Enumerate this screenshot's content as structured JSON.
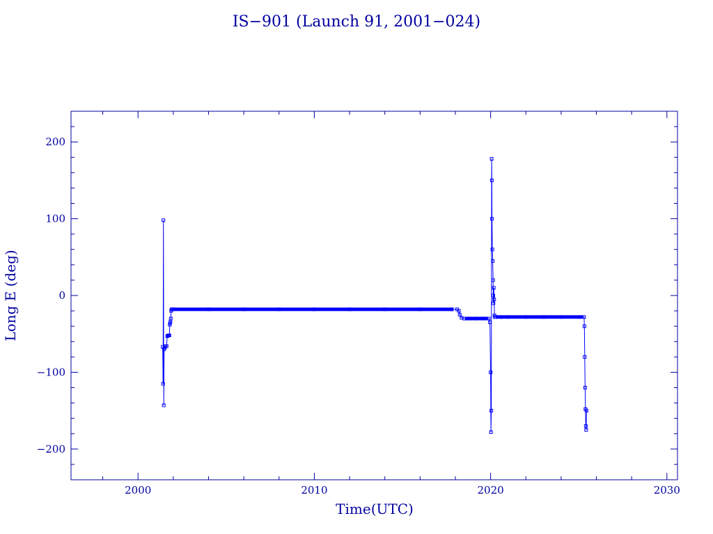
{
  "chart_data": {
    "type": "line",
    "title": "IS−901 (Launch 91, 2001−024)",
    "xlabel": "Time(UTC)",
    "ylabel": "Long E (deg)",
    "xlim": [
      1996.2,
      2030.6
    ],
    "ylim": [
      -240,
      240
    ],
    "x_ticks": [
      2000,
      2010,
      2020,
      2030
    ],
    "x_tick_labels": [
      "2000",
      "2010",
      "2020",
      "2030"
    ],
    "y_ticks": [
      -200,
      -100,
      0,
      100,
      200
    ],
    "y_tick_labels": [
      "−200",
      "−100",
      "0",
      "100",
      "200"
    ],
    "grid": false,
    "legend": "none",
    "color": "#0000ff",
    "axis_color": "#0000a0",
    "series": [
      {
        "marker": "open-square",
        "x": [
          2001.4,
          2001.42,
          2001.44,
          2001.46,
          2001.48,
          2001.52,
          2001.56,
          2001.62,
          2001.66,
          2001.7,
          2001.74,
          2001.78,
          2001.8,
          2001.82,
          2001.84,
          2001.86,
          2001.88,
          2001.9,
          2001.94,
          2002.0,
          2004.0,
          2006.0,
          2008.0,
          2010.0,
          2012.0,
          2014.0,
          2016.0,
          2017.8,
          2018.1,
          2018.2,
          2018.25,
          2018.35,
          2018.5,
          2018.8,
          2019.2,
          2019.6,
          2019.9,
          2019.96,
          2020.0,
          2020.02,
          2020.04,
          2020.06,
          2020.07,
          2020.08,
          2020.1,
          2020.12,
          2020.14,
          2020.15,
          2020.16,
          2020.18,
          2020.2,
          2020.22,
          2020.24,
          2020.3,
          2020.6,
          2021.0,
          2022.0,
          2023.0,
          2024.0,
          2025.0,
          2025.3,
          2025.32,
          2025.34,
          2025.36,
          2025.38,
          2025.4,
          2025.42,
          2025.44
        ],
        "y": [
          -67,
          -115,
          98,
          -143,
          -70,
          -68,
          -66,
          -66,
          -53,
          -52,
          -52,
          -52,
          -38,
          -36,
          -34,
          -30,
          -20,
          -18,
          -18,
          -18,
          -18,
          -18,
          -18,
          -18,
          -18,
          -18,
          -18,
          -18,
          -18,
          -20,
          -25,
          -29,
          -30,
          -30,
          -30,
          -30,
          -30,
          -35,
          -100,
          -178,
          -150,
          178,
          150,
          100,
          60,
          45,
          20,
          0,
          -10,
          10,
          -5,
          -26,
          -28,
          -28,
          -28,
          -28,
          -28,
          -28,
          -28,
          -28,
          -28,
          -40,
          -80,
          -120,
          -148,
          -170,
          -175,
          -150
        ]
      }
    ]
  }
}
